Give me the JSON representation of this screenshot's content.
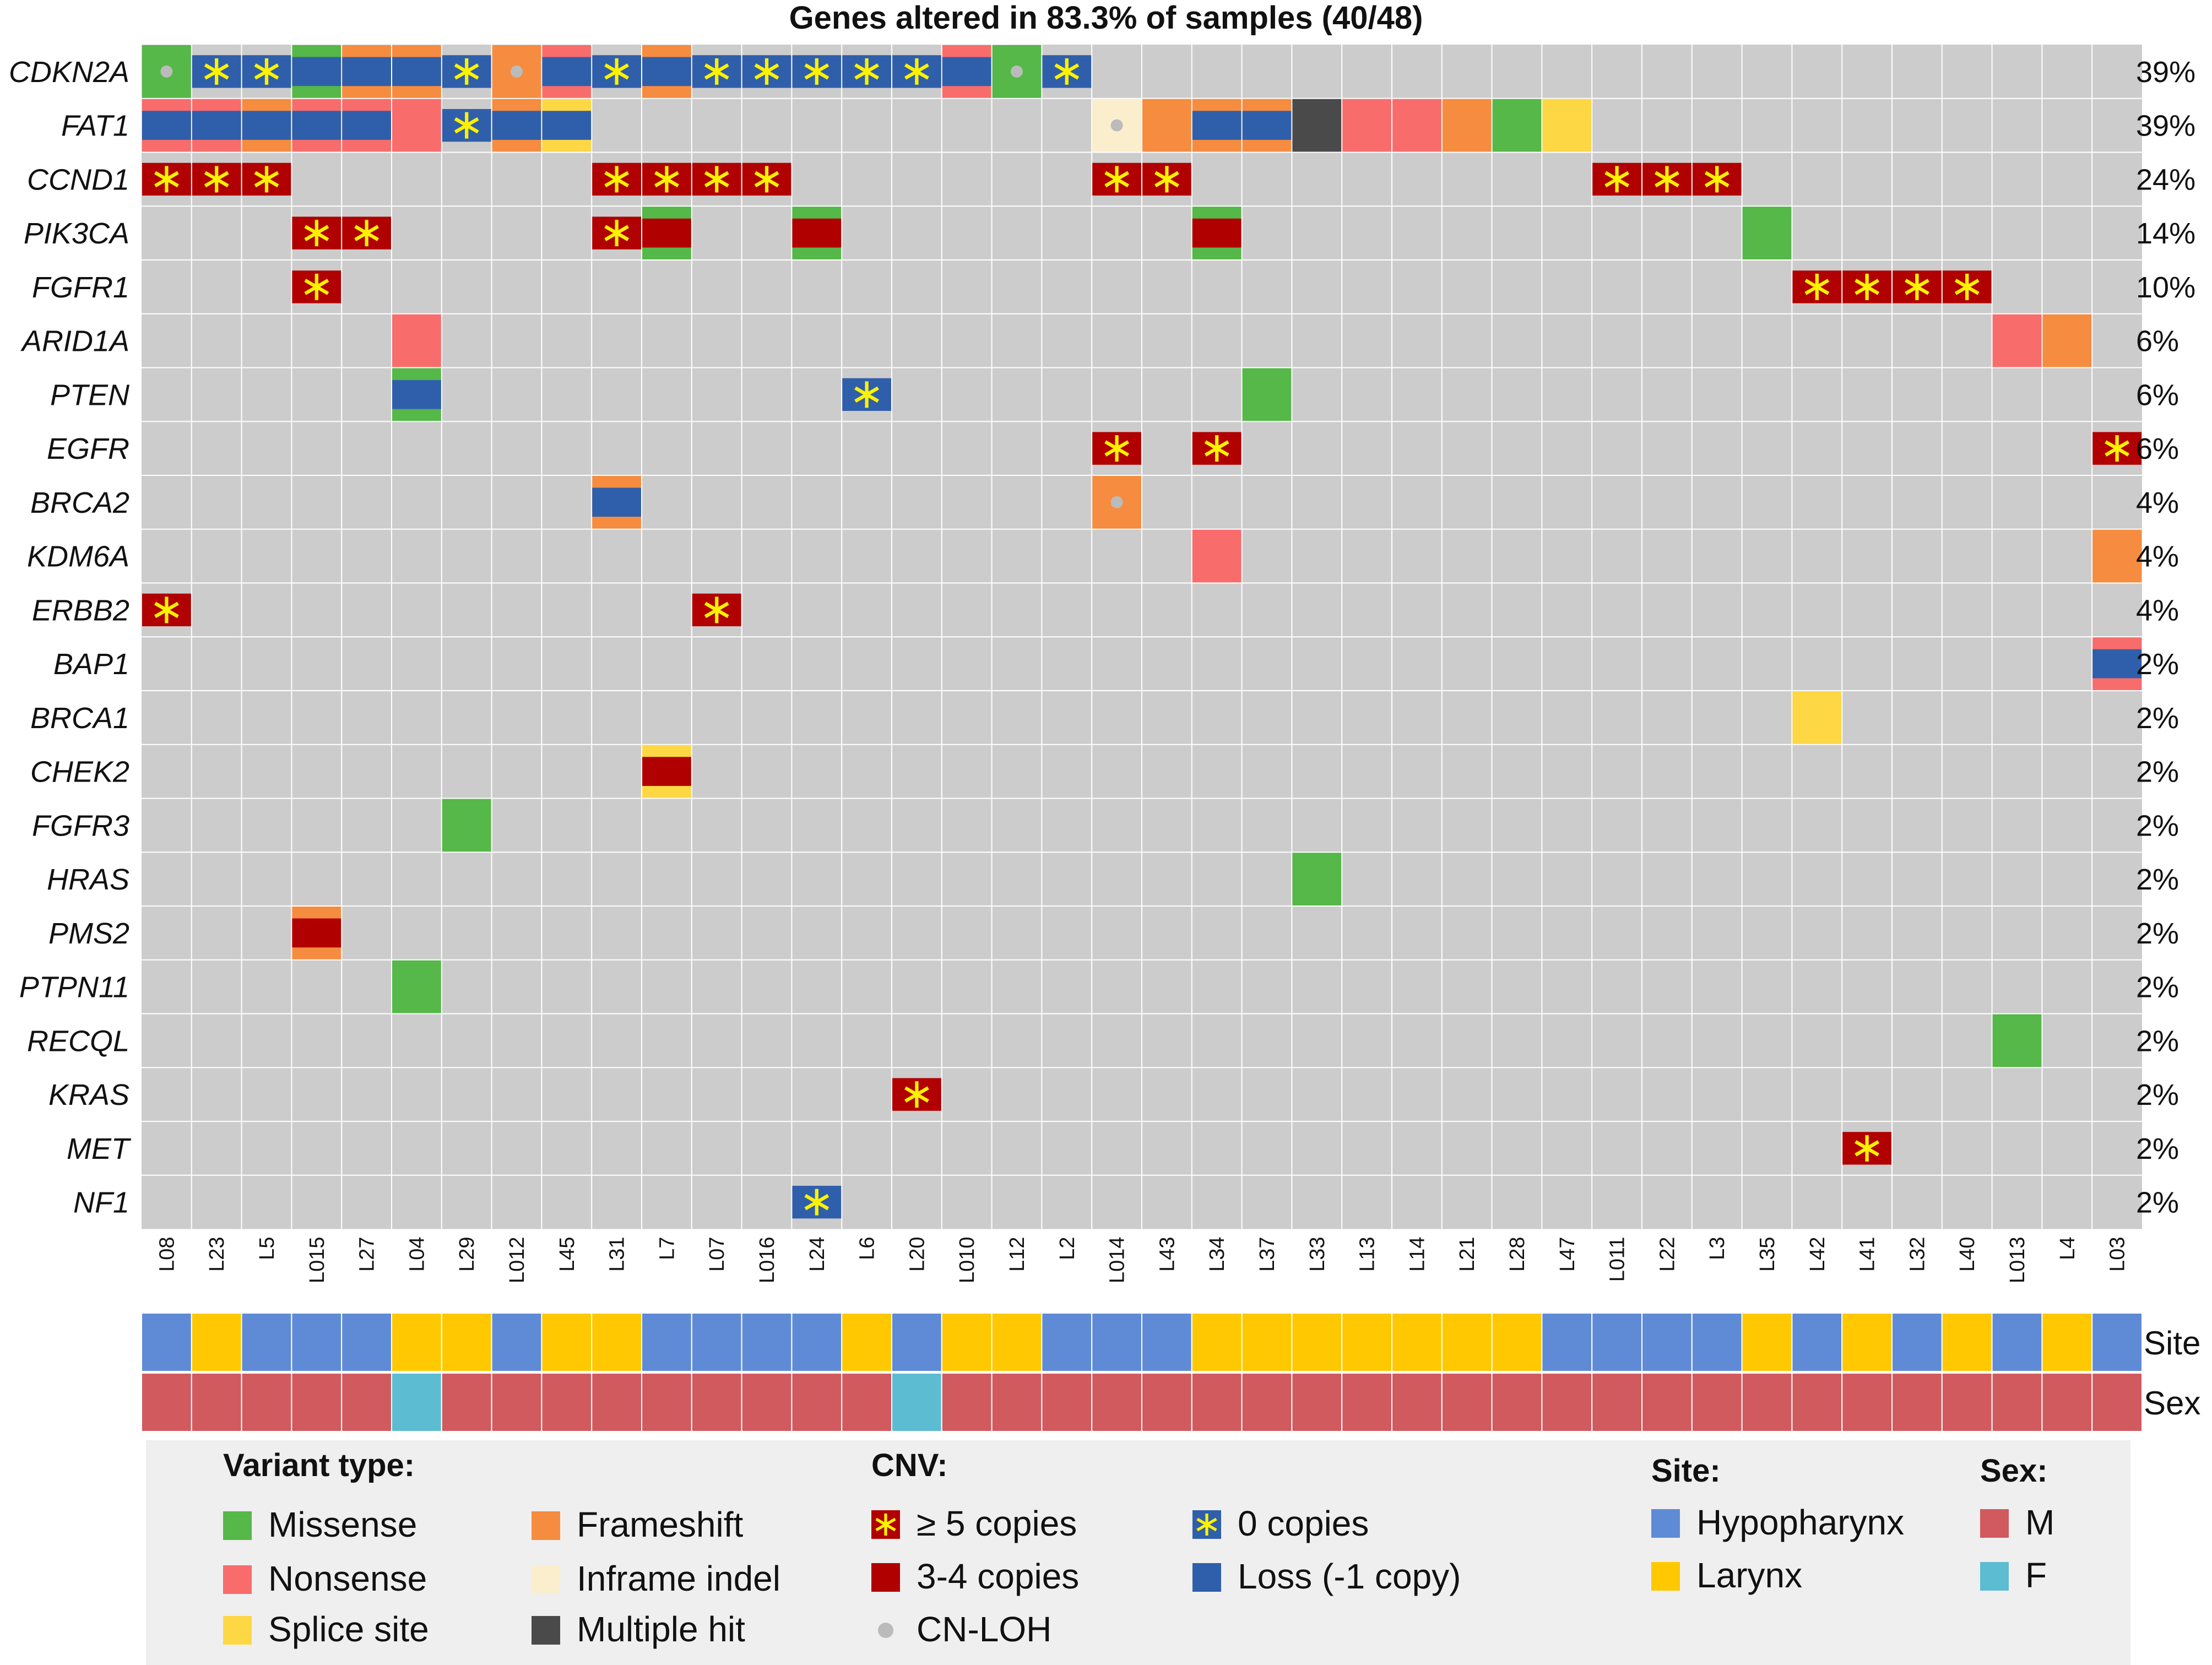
{
  "chart_data": {
    "type": "table",
    "title": "Genes altered in 83.3% of samples (40/48)",
    "samples": [
      "L08",
      "L23",
      "L5",
      "L015",
      "L27",
      "L04",
      "L29",
      "L012",
      "L45",
      "L31",
      "L7",
      "L07",
      "L016",
      "L24",
      "L6",
      "L20",
      "L010",
      "L12",
      "L2",
      "L014",
      "L43",
      "L34",
      "L37",
      "L33",
      "L13",
      "L14",
      "L21",
      "L28",
      "L47",
      "L011",
      "L22",
      "L3",
      "L35",
      "L42",
      "L41",
      "L32",
      "L40",
      "L013",
      "L4",
      "L03"
    ],
    "genes": [
      {
        "name": "CDKN2A",
        "pct": "39%"
      },
      {
        "name": "FAT1",
        "pct": "39%"
      },
      {
        "name": "CCND1",
        "pct": "24%"
      },
      {
        "name": "PIK3CA",
        "pct": "14%"
      },
      {
        "name": "FGFR1",
        "pct": "10%"
      },
      {
        "name": "ARID1A",
        "pct": "6%"
      },
      {
        "name": "PTEN",
        "pct": "6%"
      },
      {
        "name": "EGFR",
        "pct": "6%"
      },
      {
        "name": "BRCA2",
        "pct": "4%"
      },
      {
        "name": "KDM6A",
        "pct": "4%"
      },
      {
        "name": "ERBB2",
        "pct": "4%"
      },
      {
        "name": "BAP1",
        "pct": "2%"
      },
      {
        "name": "BRCA1",
        "pct": "2%"
      },
      {
        "name": "CHEK2",
        "pct": "2%"
      },
      {
        "name": "FGFR3",
        "pct": "2%"
      },
      {
        "name": "HRAS",
        "pct": "2%"
      },
      {
        "name": "PMS2",
        "pct": "2%"
      },
      {
        "name": "PTPN11",
        "pct": "2%"
      },
      {
        "name": "RECQL",
        "pct": "2%"
      },
      {
        "name": "KRAS",
        "pct": "2%"
      },
      {
        "name": "MET",
        "pct": "2%"
      },
      {
        "name": "NF1",
        "pct": "2%"
      }
    ],
    "alterations": [
      {
        "g": 0,
        "s": 0,
        "v": "Missense",
        "c": "CN-LOH"
      },
      {
        "g": 0,
        "s": 1,
        "c": "0 copies"
      },
      {
        "g": 0,
        "s": 2,
        "c": "0 copies"
      },
      {
        "g": 0,
        "s": 3,
        "v": "Missense",
        "c": "Loss (-1 copy)"
      },
      {
        "g": 0,
        "s": 4,
        "v": "Frameshift",
        "c": "Loss (-1 copy)"
      },
      {
        "g": 0,
        "s": 5,
        "v": "Frameshift",
        "c": "Loss (-1 copy)"
      },
      {
        "g": 0,
        "s": 6,
        "c": "0 copies"
      },
      {
        "g": 0,
        "s": 7,
        "v": "Frameshift",
        "c": "CN-LOH"
      },
      {
        "g": 0,
        "s": 8,
        "v": "Nonsense",
        "c": "Loss (-1 copy)"
      },
      {
        "g": 0,
        "s": 9,
        "c": "0 copies"
      },
      {
        "g": 0,
        "s": 10,
        "v": "Frameshift",
        "c": "Loss (-1 copy)"
      },
      {
        "g": 0,
        "s": 11,
        "c": "0 copies"
      },
      {
        "g": 0,
        "s": 12,
        "c": "0 copies"
      },
      {
        "g": 0,
        "s": 13,
        "c": "0 copies"
      },
      {
        "g": 0,
        "s": 14,
        "c": "0 copies"
      },
      {
        "g": 0,
        "s": 15,
        "c": "0 copies"
      },
      {
        "g": 0,
        "s": 16,
        "v": "Nonsense",
        "c": "Loss (-1 copy)"
      },
      {
        "g": 0,
        "s": 17,
        "v": "Missense",
        "c": "CN-LOH"
      },
      {
        "g": 0,
        "s": 18,
        "c": "0 copies"
      },
      {
        "g": 1,
        "s": 0,
        "v": "Nonsense",
        "c": "Loss (-1 copy)"
      },
      {
        "g": 1,
        "s": 1,
        "v": "Nonsense",
        "c": "Loss (-1 copy)"
      },
      {
        "g": 1,
        "s": 2,
        "v": "Frameshift",
        "c": "Loss (-1 copy)"
      },
      {
        "g": 1,
        "s": 3,
        "v": "Nonsense",
        "c": "Loss (-1 copy)"
      },
      {
        "g": 1,
        "s": 4,
        "v": "Nonsense",
        "c": "Loss (-1 copy)"
      },
      {
        "g": 1,
        "s": 5,
        "v": "Nonsense"
      },
      {
        "g": 1,
        "s": 6,
        "c": "0 copies"
      },
      {
        "g": 1,
        "s": 7,
        "v": "Frameshift",
        "c": "Loss (-1 copy)"
      },
      {
        "g": 1,
        "s": 8,
        "v": "Splice site",
        "c": "Loss (-1 copy)"
      },
      {
        "g": 1,
        "s": 19,
        "v": "Inframe indel",
        "c": "CN-LOH"
      },
      {
        "g": 1,
        "s": 20,
        "v": "Frameshift"
      },
      {
        "g": 1,
        "s": 21,
        "v": "Frameshift",
        "c": "Loss (-1 copy)"
      },
      {
        "g": 1,
        "s": 22,
        "v": "Frameshift",
        "c": "Loss (-1 copy)"
      },
      {
        "g": 1,
        "s": 23,
        "v": "Multiple hit"
      },
      {
        "g": 1,
        "s": 24,
        "v": "Nonsense"
      },
      {
        "g": 1,
        "s": 25,
        "v": "Nonsense"
      },
      {
        "g": 1,
        "s": 26,
        "v": "Frameshift"
      },
      {
        "g": 1,
        "s": 27,
        "v": "Missense"
      },
      {
        "g": 1,
        "s": 28,
        "v": "Splice site"
      },
      {
        "g": 2,
        "s": 0,
        "c": "≥ 5 copies"
      },
      {
        "g": 2,
        "s": 1,
        "c": "≥ 5 copies"
      },
      {
        "g": 2,
        "s": 2,
        "c": "≥ 5 copies"
      },
      {
        "g": 2,
        "s": 9,
        "c": "≥ 5 copies"
      },
      {
        "g": 2,
        "s": 10,
        "c": "≥ 5 copies"
      },
      {
        "g": 2,
        "s": 11,
        "c": "≥ 5 copies"
      },
      {
        "g": 2,
        "s": 12,
        "c": "≥ 5 copies"
      },
      {
        "g": 2,
        "s": 19,
        "c": "≥ 5 copies"
      },
      {
        "g": 2,
        "s": 20,
        "c": "≥ 5 copies"
      },
      {
        "g": 2,
        "s": 29,
        "c": "≥ 5 copies"
      },
      {
        "g": 2,
        "s": 30,
        "c": "≥ 5 copies"
      },
      {
        "g": 2,
        "s": 31,
        "c": "≥ 5 copies"
      },
      {
        "g": 3,
        "s": 3,
        "c": "≥ 5 copies"
      },
      {
        "g": 3,
        "s": 4,
        "c": "≥ 5 copies"
      },
      {
        "g": 3,
        "s": 9,
        "c": "≥ 5 copies"
      },
      {
        "g": 3,
        "s": 10,
        "v": "Missense",
        "c": "3-4 copies"
      },
      {
        "g": 3,
        "s": 13,
        "v": "Missense",
        "c": "3-4 copies"
      },
      {
        "g": 3,
        "s": 21,
        "v": "Missense",
        "c": "3-4 copies"
      },
      {
        "g": 3,
        "s": 32,
        "v": "Missense"
      },
      {
        "g": 4,
        "s": 3,
        "c": "≥ 5 copies"
      },
      {
        "g": 4,
        "s": 33,
        "c": "≥ 5 copies"
      },
      {
        "g": 4,
        "s": 34,
        "c": "≥ 5 copies"
      },
      {
        "g": 4,
        "s": 35,
        "c": "≥ 5 copies"
      },
      {
        "g": 4,
        "s": 36,
        "c": "≥ 5 copies"
      },
      {
        "g": 5,
        "s": 5,
        "v": "Nonsense"
      },
      {
        "g": 5,
        "s": 37,
        "v": "Nonsense"
      },
      {
        "g": 5,
        "s": 38,
        "v": "Frameshift"
      },
      {
        "g": 6,
        "s": 5,
        "v": "Missense",
        "c": "Loss (-1 copy)"
      },
      {
        "g": 6,
        "s": 14,
        "c": "0 copies"
      },
      {
        "g": 6,
        "s": 22,
        "v": "Missense"
      },
      {
        "g": 7,
        "s": 19,
        "c": "≥ 5 copies"
      },
      {
        "g": 7,
        "s": 21,
        "c": "≥ 5 copies"
      },
      {
        "g": 7,
        "s": 39,
        "c": "≥ 5 copies"
      },
      {
        "g": 8,
        "s": 9,
        "v": "Frameshift",
        "c": "Loss (-1 copy)"
      },
      {
        "g": 8,
        "s": 19,
        "v": "Frameshift",
        "c": "CN-LOH"
      },
      {
        "g": 9,
        "s": 21,
        "v": "Nonsense"
      },
      {
        "g": 9,
        "s": 39,
        "v": "Frameshift"
      },
      {
        "g": 10,
        "s": 0,
        "c": "≥ 5 copies"
      },
      {
        "g": 10,
        "s": 11,
        "c": "≥ 5 copies"
      },
      {
        "g": 11,
        "s": 39,
        "v": "Nonsense",
        "c": "Loss (-1 copy)"
      },
      {
        "g": 12,
        "s": 33,
        "v": "Splice site"
      },
      {
        "g": 13,
        "s": 10,
        "v": "Splice site",
        "c": "3-4 copies"
      },
      {
        "g": 14,
        "s": 6,
        "v": "Missense"
      },
      {
        "g": 15,
        "s": 23,
        "v": "Missense"
      },
      {
        "g": 16,
        "s": 3,
        "v": "Frameshift",
        "c": "3-4 copies"
      },
      {
        "g": 17,
        "s": 5,
        "v": "Missense"
      },
      {
        "g": 18,
        "s": 37,
        "v": "Missense"
      },
      {
        "g": 19,
        "s": 15,
        "c": "≥ 5 copies"
      },
      {
        "g": 20,
        "s": 34,
        "c": "≥ 5 copies"
      },
      {
        "g": 21,
        "s": 13,
        "c": "0 copies"
      }
    ],
    "site": [
      "Hypopharynx",
      "Larynx",
      "Hypopharynx",
      "Hypopharynx",
      "Hypopharynx",
      "Larynx",
      "Larynx",
      "Hypopharynx",
      "Larynx",
      "Larynx",
      "Hypopharynx",
      "Hypopharynx",
      "Hypopharynx",
      "Hypopharynx",
      "Larynx",
      "Hypopharynx",
      "Larynx",
      "Larynx",
      "Hypopharynx",
      "Hypopharynx",
      "Hypopharynx",
      "Larynx",
      "Larynx",
      "Larynx",
      "Larynx",
      "Larynx",
      "Larynx",
      "Larynx",
      "Hypopharynx",
      "Hypopharynx",
      "Hypopharynx",
      "Hypopharynx",
      "Larynx",
      "Hypopharynx",
      "Larynx",
      "Hypopharynx",
      "Larynx",
      "Hypopharynx",
      "Larynx",
      "Hypopharynx"
    ],
    "sex": [
      "M",
      "M",
      "M",
      "M",
      "M",
      "F",
      "M",
      "M",
      "M",
      "M",
      "M",
      "M",
      "M",
      "M",
      "M",
      "F",
      "M",
      "M",
      "M",
      "M",
      "M",
      "M",
      "M",
      "M",
      "M",
      "M",
      "M",
      "M",
      "M",
      "M",
      "M",
      "M",
      "M",
      "M",
      "M",
      "M",
      "M",
      "M",
      "M",
      "M"
    ],
    "track_labels": {
      "site": "Site",
      "sex": "Sex"
    },
    "legend": {
      "variant_title": "Variant type:",
      "variant_items": [
        "Missense",
        "Frameshift",
        "Nonsense",
        "Inframe indel",
        "Splice site",
        "Multiple hit"
      ],
      "cnv_title": "CNV:",
      "cnv_items": [
        "≥ 5 copies",
        "0 copies",
        "3-4 copies",
        "Loss (-1 copy)",
        "CN-LOH"
      ],
      "site_title": "Site:",
      "site_items": [
        "Hypopharynx",
        "Larynx"
      ],
      "sex_title": "Sex:",
      "sex_items": [
        "M",
        "F"
      ]
    }
  },
  "colors": {
    "background_cell": "#cccccc",
    "Missense": "#55b848",
    "Nonsense": "#f96c6c",
    "Splice site": "#fdd744",
    "Frameshift": "#f68c3f",
    "Inframe indel": "#fbeecd",
    "Multiple hit": "#4a4a4a",
    "amp_high": "#b10000",
    "amp_mid": "#b10000",
    "loss": "#2f5fab",
    "star": "#fff200",
    "cnloh": "#bbbbbb",
    "Hypopharynx": "#5f8bd6",
    "Larynx": "#ffc800",
    "M": "#d15a5e",
    "F": "#5cbcd2",
    "legend_bg": "#efefef"
  }
}
